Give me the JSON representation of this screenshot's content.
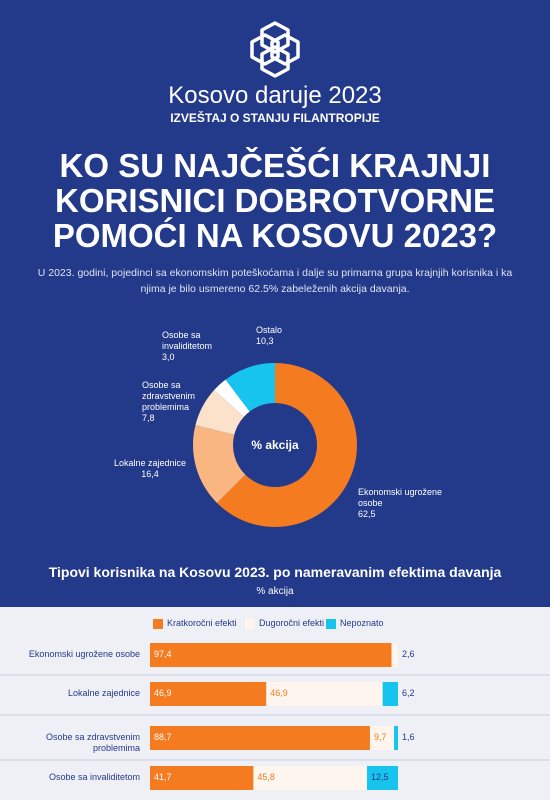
{
  "header": {
    "title": "Kosovo daruje 2023",
    "subtitle": "IZVEŠTAJ O STANJU FILANTROPIJE"
  },
  "headline": [
    "KO SU NAJČEŠĆI KRAJNJI",
    "KORISNICI DOBROTVORNE",
    "POMOĆI NA KOSOVU 2023?"
  ],
  "intro": "U 2023. godini, pojedinci sa ekonomskim poteškoćama i dalje su primarna grupa krajnjih korisnika i ka njima je bilo usmereno 62.5% zabeleženih akcija davanja.",
  "chart_data": [
    {
      "type": "pie",
      "center_label": "% akcija",
      "categories": [
        "Ekonomski ugrožene osobe",
        "Lokalne zajednice",
        "Osobe sa zdravstvenim problemima",
        "Osobe sa invaliditetom",
        "Ostalo"
      ],
      "values": [
        62.5,
        16.4,
        7.8,
        3.0,
        10.3
      ],
      "value_labels": [
        "62,5",
        "16,4",
        "7,8",
        "3,0",
        "10,3"
      ],
      "colors": [
        "#f47b20",
        "#f9b681",
        "#fde2cb",
        "#ffffff",
        "#17c4ee"
      ]
    },
    {
      "type": "stacked_bar",
      "title": "Tipovi korisnika na Kosovu 2023. po nameravanim efektima davanja",
      "subtitle": "% akcija",
      "categories": [
        "Ekonomski ugrožene osobe",
        "Lokalne zajednice",
        "Osobe sa zdravstvenim problemima",
        "Osobe sa invaliditetom"
      ],
      "xlim": [
        0,
        100
      ],
      "series": [
        {
          "name": "Kratkoročni efekti",
          "color": "#f47b20",
          "values": [
            97.4,
            46.9,
            88.7,
            41.7
          ],
          "value_labels": [
            "97,4",
            "46,9",
            "88,7",
            "41,7"
          ]
        },
        {
          "name": "Dugoročni efekti",
          "color": "#fdf5ee",
          "values": [
            2.6,
            46.9,
            9.7,
            45.8
          ],
          "value_labels": [
            "2,6",
            "46,9",
            "9,7",
            "45,8"
          ]
        },
        {
          "name": "Nepoznato",
          "color": "#17c4ee",
          "values": [
            null,
            6.2,
            1.6,
            12.5
          ],
          "value_labels": [
            null,
            "6,2",
            "1,6",
            "12,5"
          ]
        }
      ]
    }
  ]
}
